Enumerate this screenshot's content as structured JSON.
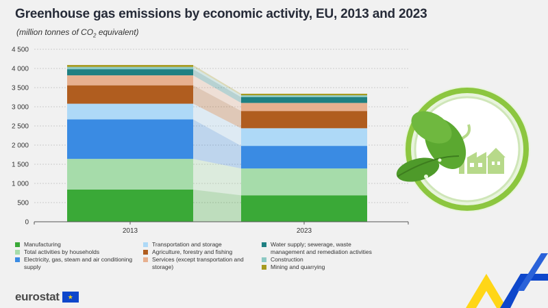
{
  "header": {
    "title": "Greenhouse gas emissions by economic activity, EU, 2013 and 2023",
    "subtitle_prefix": "(million tonnes of CO",
    "subtitle_sub": "2",
    "subtitle_suffix": " equivalent)"
  },
  "chart_data": {
    "type": "bar",
    "stacked": true,
    "title": "Greenhouse gas emissions by economic activity, EU, 2013 and 2023",
    "ylabel": "million tonnes of CO2 equivalent",
    "xlabel": "",
    "categories": [
      "2013",
      "2023"
    ],
    "ylim": [
      0,
      4500
    ],
    "yticks": [
      0,
      500,
      1000,
      1500,
      2000,
      2500,
      3000,
      3500,
      4000,
      4500
    ],
    "ytick_labels": [
      "0",
      "500",
      "1 000",
      "1 500",
      "2 000",
      "2 500",
      "3 000",
      "3 500",
      "4 000",
      "4 500"
    ],
    "grid": true,
    "series": [
      {
        "name": "Manufacturing",
        "color": "#3aa937",
        "values": [
          840,
          690
        ]
      },
      {
        "name": "Total activities by households",
        "color": "#a6dcaa",
        "values": [
          800,
          700
        ]
      },
      {
        "name": "Electricity, gas, steam and air conditioning supply",
        "color": "#3a8be3",
        "values": [
          1030,
          590
        ]
      },
      {
        "name": "Transportation and storage",
        "color": "#aed9f7",
        "values": [
          410,
          460
        ]
      },
      {
        "name": "Agriculture, forestry and fishing",
        "color": "#b05d1f",
        "values": [
          480,
          450
        ]
      },
      {
        "name": "Services (except transportation and storage)",
        "color": "#e7b08f",
        "values": [
          260,
          210
        ]
      },
      {
        "name": "Water supply; sewerage, waste management and remediation activities",
        "color": "#1f8082",
        "values": [
          160,
          150
        ]
      },
      {
        "name": "Construction",
        "color": "#8cc9c3",
        "values": [
          60,
          50
        ]
      },
      {
        "name": "Mining and quarrying",
        "color": "#a69a1f",
        "values": [
          50,
          40
        ]
      }
    ]
  },
  "legend": {
    "col1": [
      "Manufacturing",
      "Total activities by households",
      "Electricity, gas, steam and air conditioning supply"
    ],
    "col2": [
      "Transportation and storage",
      "Agriculture, forestry and fishing",
      "Services (except transportation and storage)"
    ],
    "col3": [
      "Water supply; sewerage, waste management and remediation activities",
      "Construction",
      "Mining and quarrying"
    ]
  },
  "footer": {
    "brand": "eurostat"
  },
  "colors": {
    "brand_blue": "#0e47cb",
    "brand_yellow": "#ffd617",
    "leaf_green": "#6fb83f"
  }
}
